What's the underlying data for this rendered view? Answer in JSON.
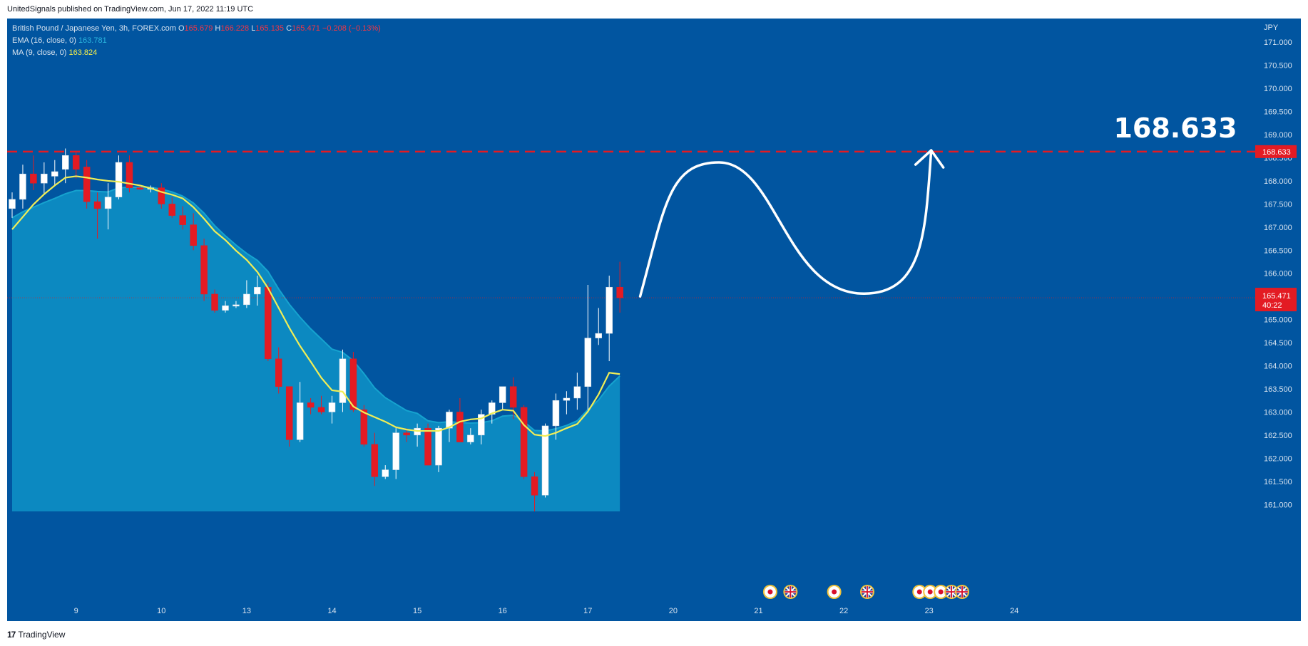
{
  "header": {
    "publish_line": "UnitedSignals published on TradingView.com, Jun 17, 2022 11:19 UTC"
  },
  "legend": {
    "symbol": "British Pound / Japanese Yen, 3h, FOREX.com",
    "o_label": "O",
    "o_value": "165.679",
    "h_label": "H",
    "h_value": "166.228",
    "l_label": "L",
    "l_value": "165.135",
    "c_label": "C",
    "c_value": "165.471",
    "change": "−0.208 (−0.13%)",
    "ema_label": "EMA (16, close, 0)",
    "ema_value": "163.781",
    "ma_label": "MA (9, close, 0)",
    "ma_value": "163.824"
  },
  "footer": {
    "brand": "TradingView",
    "logo_glyph": "17"
  },
  "colors": {
    "background": "#0155a0",
    "up": "#ffffff",
    "down": "#e31b23",
    "ema_fill": "#0d8fc4",
    "ema_line": "#16a3cf",
    "ma_line": "#f1ee56",
    "target_line": "#e31b23",
    "price_tag": "#e31b23"
  },
  "chart_data": {
    "type": "candlestick",
    "currency": "JPY",
    "ylim": [
      160.85,
      171.45
    ],
    "y_ticks": [
      "161.000",
      "161.500",
      "162.000",
      "162.500",
      "163.000",
      "163.500",
      "164.000",
      "164.500",
      "165.000",
      "165.500",
      "166.000",
      "166.500",
      "167.000",
      "167.500",
      "168.000",
      "168.500",
      "169.000",
      "169.500",
      "170.000",
      "170.500",
      "171.000"
    ],
    "x_tick_labels": [
      {
        "label": "9",
        "bar": 6
      },
      {
        "label": "10",
        "bar": 14
      },
      {
        "label": "13",
        "bar": 22
      },
      {
        "label": "14",
        "bar": 30
      },
      {
        "label": "15",
        "bar": 38
      },
      {
        "label": "16",
        "bar": 46
      },
      {
        "label": "17",
        "bar": 54
      },
      {
        "label": "20",
        "bar": 62
      },
      {
        "label": "21",
        "bar": 70
      },
      {
        "label": "22",
        "bar": 78
      },
      {
        "label": "23",
        "bar": 86
      },
      {
        "label": "24",
        "bar": 94
      }
    ],
    "ohlc": [
      [
        167.4,
        167.75,
        167.2,
        167.6
      ],
      [
        167.6,
        168.35,
        167.4,
        168.15
      ],
      [
        168.15,
        168.55,
        167.8,
        167.95
      ],
      [
        167.95,
        168.4,
        167.7,
        168.15
      ],
      [
        168.1,
        168.45,
        167.9,
        168.2
      ],
      [
        168.25,
        168.7,
        167.95,
        168.55
      ],
      [
        168.55,
        168.65,
        168.05,
        168.25
      ],
      [
        168.3,
        168.45,
        167.4,
        167.55
      ],
      [
        167.55,
        167.75,
        166.75,
        167.4
      ],
      [
        167.4,
        167.95,
        166.95,
        167.65
      ],
      [
        167.65,
        168.55,
        167.6,
        168.4
      ],
      [
        168.4,
        168.55,
        167.75,
        167.85
      ],
      [
        167.85,
        167.9,
        167.8,
        167.82
      ],
      [
        167.82,
        167.9,
        167.75,
        167.85
      ],
      [
        167.85,
        167.95,
        167.4,
        167.5
      ],
      [
        167.5,
        167.65,
        167.2,
        167.25
      ],
      [
        167.25,
        167.45,
        166.95,
        167.05
      ],
      [
        167.05,
        167.3,
        166.5,
        166.6
      ],
      [
        166.6,
        166.75,
        165.4,
        165.55
      ],
      [
        165.55,
        165.65,
        165.15,
        165.2
      ],
      [
        165.2,
        165.4,
        165.15,
        165.3
      ],
      [
        165.3,
        165.4,
        165.25,
        165.32
      ],
      [
        165.32,
        165.85,
        165.25,
        165.55
      ],
      [
        165.55,
        165.95,
        165.3,
        165.7
      ],
      [
        165.7,
        165.8,
        164.1,
        164.15
      ],
      [
        164.15,
        164.4,
        163.4,
        163.55
      ],
      [
        163.55,
        163.55,
        162.25,
        162.4
      ],
      [
        162.4,
        163.65,
        162.35,
        163.2
      ],
      [
        163.2,
        163.3,
        162.95,
        163.1
      ],
      [
        163.1,
        163.35,
        162.95,
        163.0
      ],
      [
        163.0,
        163.35,
        162.75,
        163.2
      ],
      [
        163.2,
        164.35,
        163.0,
        164.15
      ],
      [
        164.15,
        164.3,
        163.0,
        163.05
      ],
      [
        163.05,
        163.15,
        162.25,
        162.3
      ],
      [
        162.3,
        162.55,
        161.4,
        161.6
      ],
      [
        161.6,
        161.85,
        161.55,
        161.75
      ],
      [
        161.75,
        162.65,
        161.55,
        162.55
      ],
      [
        162.55,
        162.65,
        162.35,
        162.5
      ],
      [
        162.5,
        162.75,
        162.25,
        162.65
      ],
      [
        162.65,
        162.75,
        161.85,
        161.85
      ],
      [
        161.85,
        162.7,
        161.7,
        162.65
      ],
      [
        162.65,
        163.05,
        162.35,
        163.0
      ],
      [
        163.0,
        163.3,
        162.35,
        162.35
      ],
      [
        162.35,
        162.65,
        162.3,
        162.5
      ],
      [
        162.5,
        163.05,
        162.3,
        162.95
      ],
      [
        162.95,
        163.25,
        162.75,
        163.2
      ],
      [
        163.2,
        163.55,
        163.05,
        163.55
      ],
      [
        163.55,
        163.75,
        162.85,
        163.1
      ],
      [
        163.1,
        163.15,
        161.55,
        161.6
      ],
      [
        161.6,
        161.7,
        160.85,
        161.2
      ],
      [
        161.2,
        162.75,
        161.15,
        162.7
      ],
      [
        162.7,
        163.4,
        162.4,
        163.25
      ],
      [
        163.25,
        163.45,
        162.95,
        163.3
      ],
      [
        163.3,
        163.85,
        163.05,
        163.55
      ],
      [
        163.55,
        165.75,
        163.05,
        164.6
      ],
      [
        164.6,
        165.25,
        164.45,
        164.7
      ],
      [
        164.7,
        165.95,
        164.1,
        165.7
      ],
      [
        165.7,
        166.25,
        165.15,
        165.47
      ]
    ],
    "ema": [
      167.2,
      167.33,
      167.43,
      167.53,
      167.62,
      167.72,
      167.79,
      167.79,
      167.77,
      167.76,
      167.85,
      167.86,
      167.86,
      167.86,
      167.82,
      167.76,
      167.67,
      167.52,
      167.3,
      167.03,
      166.81,
      166.61,
      166.43,
      166.28,
      166.04,
      165.66,
      165.33,
      165.05,
      164.8,
      164.58,
      164.36,
      164.29,
      164.11,
      163.83,
      163.52,
      163.31,
      163.17,
      163.03,
      162.97,
      162.81,
      162.77,
      162.79,
      162.77,
      162.76,
      162.77,
      162.81,
      162.91,
      162.93,
      162.79,
      162.6,
      162.59,
      162.64,
      162.71,
      162.81,
      163.05,
      163.26,
      163.56,
      163.78
    ],
    "ma": [
      166.95,
      167.22,
      167.49,
      167.71,
      167.9,
      168.07,
      168.1,
      168.07,
      168.03,
      168.0,
      167.98,
      167.94,
      167.9,
      167.84,
      167.76,
      167.7,
      167.62,
      167.43,
      167.18,
      166.91,
      166.72,
      166.49,
      166.29,
      166.03,
      165.68,
      165.25,
      164.82,
      164.43,
      164.09,
      163.74,
      163.47,
      163.44,
      163.12,
      162.99,
      162.89,
      162.79,
      162.67,
      162.62,
      162.59,
      162.59,
      162.59,
      162.67,
      162.79,
      162.84,
      162.86,
      162.97,
      163.05,
      163.03,
      162.72,
      162.51,
      162.48,
      162.55,
      162.65,
      162.74,
      163.01,
      163.38,
      163.85,
      163.82
    ],
    "target": 168.633,
    "target_label": "168.633",
    "last_price": "165.471",
    "countdown": "40:22",
    "projection": {
      "from": [
        58.9,
        165.5
      ],
      "peak": [
        66.3,
        168.4
      ],
      "trough": [
        79.9,
        165.56
      ],
      "to": [
        86.2,
        168.66
      ]
    },
    "event_icons": [
      {
        "bar": 71.1,
        "type": "jp-flag"
      },
      {
        "bar": 73.0,
        "type": "gb-flag"
      },
      {
        "bar": 77.1,
        "type": "jp-flag"
      },
      {
        "bar": 80.2,
        "type": "gb-flag"
      },
      {
        "bar": 85.1,
        "type": "jp-flag"
      },
      {
        "bar": 86.1,
        "type": "jp-flag"
      },
      {
        "bar": 87.1,
        "type": "jp-flag"
      },
      {
        "bar": 88.1,
        "type": "gb-flag"
      },
      {
        "bar": 89.1,
        "type": "gb-flag"
      }
    ]
  }
}
